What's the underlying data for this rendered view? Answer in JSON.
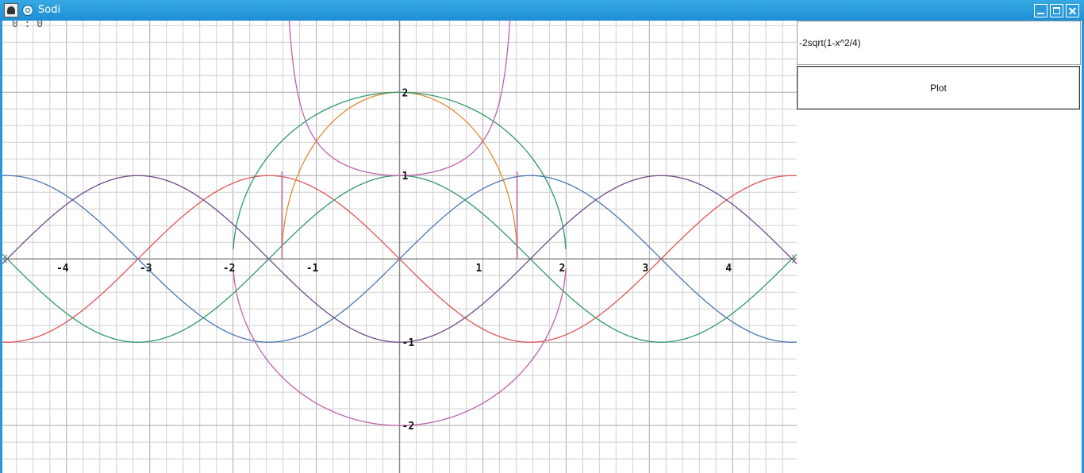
{
  "window": {
    "title": "Sodi",
    "app_icon": "app-icon",
    "system_menu_icon": "gear-icon",
    "controls": [
      "minimize-icon",
      "maximize-icon",
      "close-icon"
    ],
    "titlebar_color": "#2b9ddc"
  },
  "plot": {
    "coordinate_readout": "0 : 0",
    "grid": true,
    "colors": {
      "minor_grid": "#cfcfcf",
      "major_grid": "#a9a9a9",
      "axis": "#8a8a8a"
    }
  },
  "sidebar": {
    "expression_value": "-2sqrt(1-x^2/4)",
    "plot_button_label": "Plot"
  },
  "chart_data": {
    "type": "line",
    "xlim": [
      -4.77,
      4.77
    ],
    "ylim": [
      -2.57,
      2.86
    ],
    "x_ticks": [
      -4,
      -3,
      -2,
      -1,
      1,
      2,
      3,
      4
    ],
    "x_tick_labels": [
      "-4",
      "-3",
      "-2",
      "-1",
      "1",
      "2",
      "3",
      "4"
    ],
    "y_ticks": [
      2,
      1,
      -1,
      -2
    ],
    "y_tick_labels": [
      "2",
      "1",
      "-1",
      "-2"
    ],
    "grid": true,
    "series": [
      {
        "color": "#4a76b5",
        "expression": "sin(x)"
      },
      {
        "color": "#e05454",
        "expression": "-sin(x)"
      },
      {
        "color": "#2e9a68",
        "expression": "cos(x)"
      },
      {
        "color": "#6d4a8a",
        "expression": "-cos(x)"
      },
      {
        "color": "#e08a30",
        "expression": "2sqrt(1-x^2/2)"
      },
      {
        "color": "#2e9a68",
        "expression": "2sqrt(1-x^2/4)"
      },
      {
        "color": "#c060a8",
        "expression": "-2sqrt(1-x^2/4)"
      },
      {
        "color": "#c060a8",
        "expression": "1/sqrt(1-x^2/2)"
      }
    ]
  }
}
